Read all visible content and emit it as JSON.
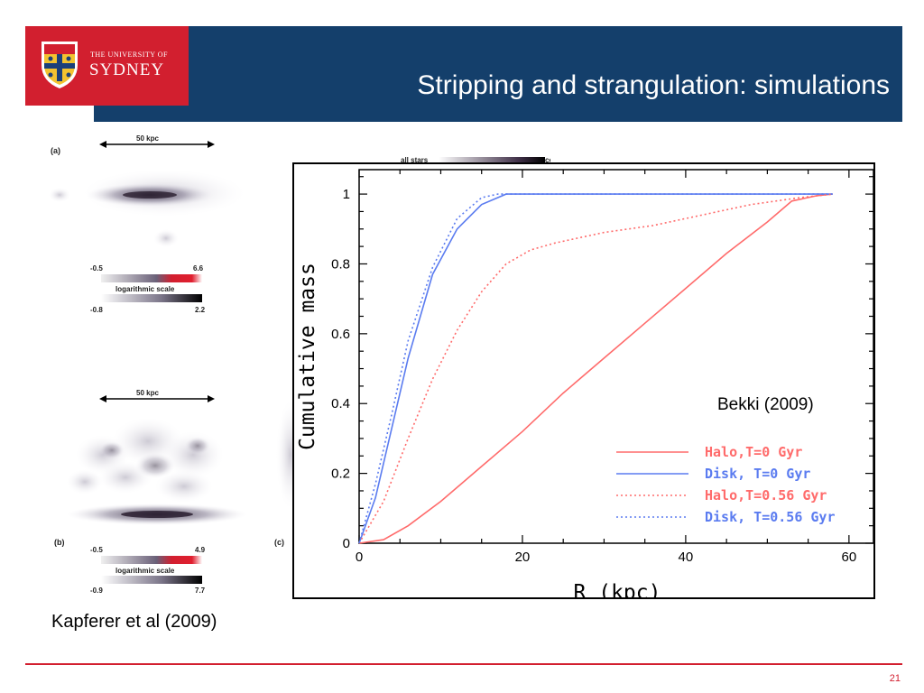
{
  "slide": {
    "title": "Stripping and strangulation: simulations",
    "page_number": "21",
    "left_caption": "Kapferer et al (2009)",
    "annotation": "Bekki (2009)"
  },
  "logo": {
    "line1": "THE UNIVERSITY OF",
    "line2": "SYDNEY"
  },
  "left_figure": {
    "panels": [
      {
        "tag": "(a)",
        "scalebar": "50 kpc",
        "colorbar1": {
          "min": "-0.5",
          "max": "6.6",
          "label": "logarithmic scale"
        },
        "colorbar2": {
          "min": "-0.8",
          "max": "2.2"
        }
      },
      {
        "tag": "(b)",
        "scalebar": "50 kpc",
        "colorbar1": {
          "min": "-0.5",
          "max": "4.9",
          "label": "logarithmic scale"
        },
        "colorbar2": {
          "min": "-0.9",
          "max": "7.7"
        }
      }
    ],
    "extra_tag": "(c)",
    "top_colorbar_labels": [
      "all stars",
      "colormap"
    ]
  },
  "colors": {
    "title_bar": "#143f6b",
    "logo_red": "#d21f2f",
    "halo": "#ff6b6b",
    "disk": "#5b7cf0"
  },
  "chart_data": {
    "type": "line",
    "xlabel": "R (kpc)",
    "ylabel": "Cumulative mass",
    "xlim": [
      0,
      63
    ],
    "ylim": [
      0,
      1.07
    ],
    "xticks": [
      0,
      20,
      40,
      60
    ],
    "yticks": [
      0,
      0.2,
      0.4,
      0.6,
      0.8,
      1
    ],
    "ytick_labels": [
      "0",
      "0.2",
      "0.4",
      "0.6",
      "0.8",
      "1"
    ],
    "grid": false,
    "legend_position": "lower-right",
    "series": [
      {
        "name": "Halo,T=0 Gyr",
        "color": "#ff6b6b",
        "style": "solid",
        "x": [
          0,
          3,
          6,
          10,
          15,
          20,
          25,
          30,
          35,
          40,
          45,
          50,
          53,
          56,
          58
        ],
        "y": [
          0,
          0.01,
          0.05,
          0.12,
          0.22,
          0.32,
          0.43,
          0.53,
          0.63,
          0.73,
          0.83,
          0.92,
          0.98,
          0.995,
          1.0
        ]
      },
      {
        "name": "Disk, T=0 Gyr",
        "color": "#5b7cf0",
        "style": "solid",
        "x": [
          0,
          2,
          4,
          6,
          9,
          12,
          15,
          18,
          25,
          40,
          58
        ],
        "y": [
          0,
          0.13,
          0.33,
          0.53,
          0.77,
          0.9,
          0.97,
          1.0,
          1.0,
          1.0,
          1.0
        ]
      },
      {
        "name": "Halo,T=0.56 Gyr",
        "color": "#ff6b6b",
        "style": "dotted",
        "x": [
          0,
          3,
          6,
          9,
          12,
          15,
          18,
          21,
          24,
          30,
          36,
          42,
          48,
          54,
          58
        ],
        "y": [
          0,
          0.12,
          0.3,
          0.47,
          0.61,
          0.72,
          0.8,
          0.84,
          0.86,
          0.89,
          0.91,
          0.94,
          0.97,
          0.99,
          1.0
        ]
      },
      {
        "name": "Disk, T=0.56 Gyr",
        "color": "#5b7cf0",
        "style": "dotted",
        "x": [
          0,
          2,
          4,
          6,
          9,
          12,
          15,
          17,
          20,
          30,
          58
        ],
        "y": [
          0,
          0.17,
          0.37,
          0.58,
          0.79,
          0.93,
          0.99,
          1.0,
          1.0,
          1.0,
          1.0
        ]
      }
    ]
  }
}
